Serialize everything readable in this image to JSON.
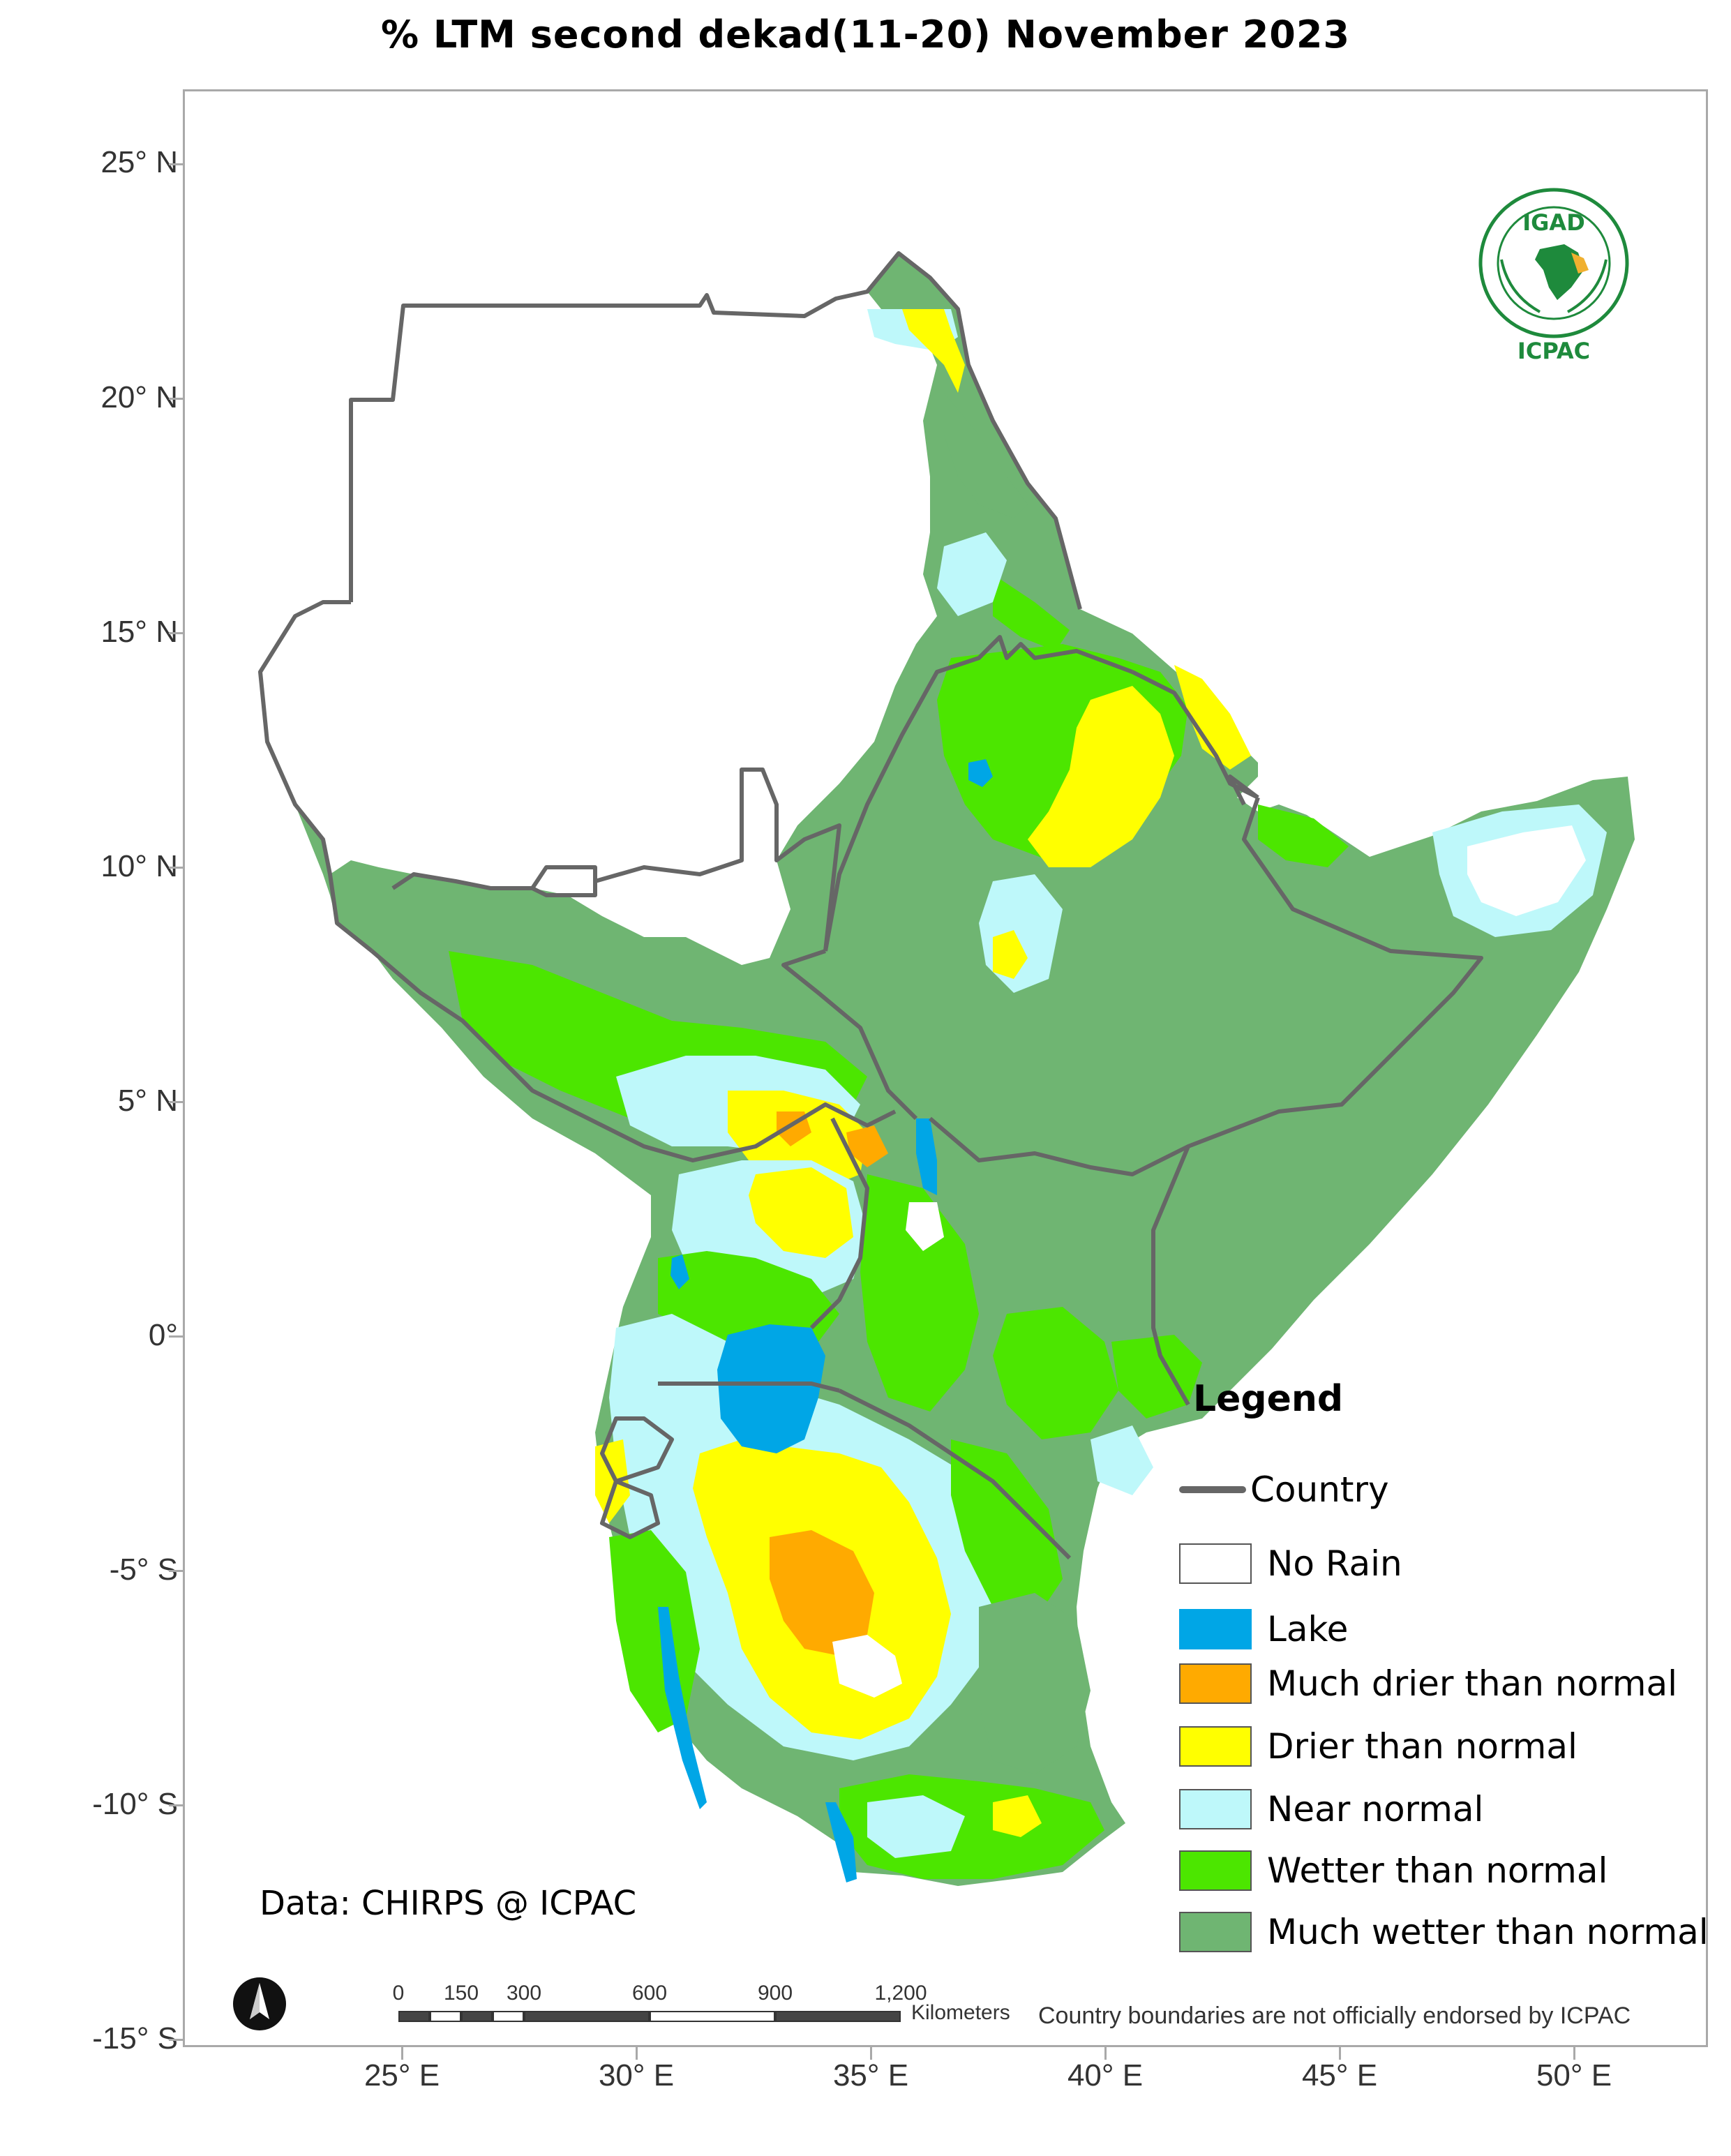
{
  "title": "% LTM  second dekad(11-20) November 2023",
  "axes": {
    "lat_labels": [
      "25° N",
      "20° N",
      "15° N",
      "10° N",
      "5° N",
      "0°",
      "-5° S",
      "-10° S",
      "-15° S"
    ],
    "lon_labels": [
      "25° E",
      "30° E",
      "35° E",
      "40° E",
      "45° E",
      "50° E"
    ]
  },
  "legend": {
    "title": "Legend",
    "country": "Country",
    "items": [
      {
        "label": "No Rain",
        "color": "#ffffff"
      },
      {
        "label": "Lake",
        "color": "#00a6e6"
      },
      {
        "label": "Much drier than normal",
        "color": "#ffaa00"
      },
      {
        "label": "Drier than normal",
        "color": "#ffff00"
      },
      {
        "label": "Near normal",
        "color": "#bef8fa"
      },
      {
        "label": "Wetter than normal",
        "color": "#4ce600"
      },
      {
        "label": "Much wetter than normal",
        "color": "#6fb572"
      }
    ]
  },
  "credit": "Data: CHIRPS @ ICPAC",
  "disclaimer": "Country boundaries are not officially endorsed by ICPAC",
  "scale": {
    "unit": "Kilometers",
    "ticks": [
      "0",
      "150",
      "300",
      "600",
      "900",
      "1,200"
    ]
  },
  "logo": {
    "top": "IGAD",
    "bottom": "ICPAC"
  },
  "colors": {
    "border": "#666666",
    "frame": "#a9a9a9"
  }
}
